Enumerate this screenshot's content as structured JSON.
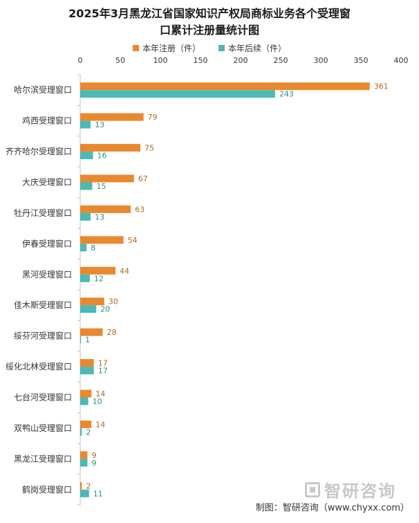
{
  "chart_data": {
    "type": "bar",
    "orientation": "horizontal",
    "title_line1": "2025年3月黑龙江省国家知识产权局商标业务各个受理窗",
    "title_line2": "口累计注册量统计图",
    "xlim": [
      0,
      400
    ],
    "xticks": [
      "0",
      "50",
      "100",
      "150",
      "200",
      "250",
      "300",
      "350",
      "400"
    ],
    "categories": [
      "哈尔滨受理窗口",
      "鸡西受理窗口",
      "齐齐哈尔受理窗口",
      "大庆受理窗口",
      "牡丹江受理窗口",
      "伊春受理窗口",
      "黑河受理窗口",
      "佳木斯受理窗口",
      "绥芬河受理窗口",
      "绥化北林受理窗口",
      "七台河受理窗口",
      "双鸭山受理窗口",
      "黑龙江受理窗口",
      "鹤岗受理窗口"
    ],
    "series": [
      {
        "name": "本年注册（件）",
        "color": "#E8892F",
        "values": [
          361,
          79,
          75,
          67,
          63,
          54,
          44,
          30,
          28,
          17,
          14,
          14,
          9,
          2
        ]
      },
      {
        "name": "本年后续（件）",
        "color": "#4DB8B4",
        "values": [
          243,
          13,
          16,
          15,
          13,
          8,
          12,
          20,
          1,
          17,
          10,
          2,
          9,
          11
        ]
      }
    ],
    "legend_position": "top-center",
    "grid": false
  },
  "watermark": {
    "text": "智研咨询"
  },
  "source": {
    "text": "制图：智研咨询（www.chyxx.com）"
  }
}
